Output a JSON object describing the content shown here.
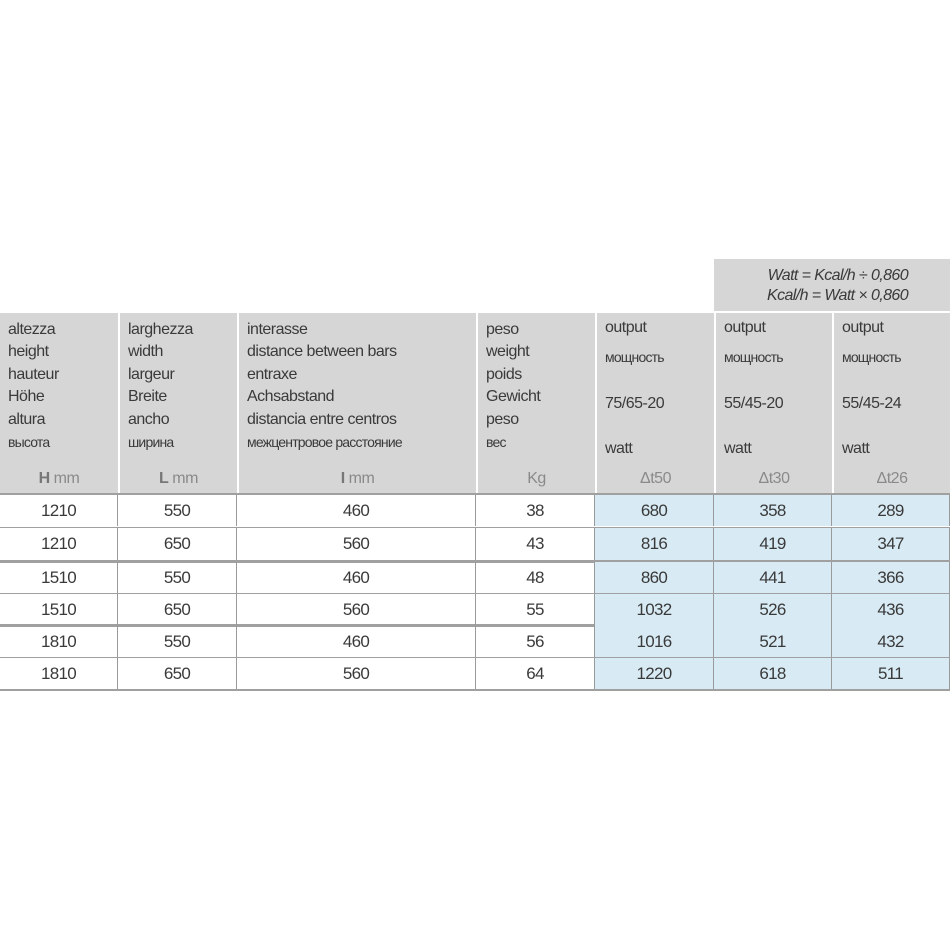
{
  "formula": {
    "line1": "Watt = Kcal/h ÷ 0,860",
    "line2": "Kcal/h = Watt × 0,860"
  },
  "headers": [
    {
      "lines": [
        "altezza",
        "height",
        "hauteur",
        "Höhe",
        "altura"
      ],
      "ru": "высота",
      "unit_letter": "H",
      "unit": "mm"
    },
    {
      "lines": [
        "larghezza",
        "width",
        "largeur",
        "Breite",
        "ancho"
      ],
      "ru": "ширина",
      "unit_letter": "L",
      "unit": "mm"
    },
    {
      "lines": [
        "interasse",
        "distance between bars",
        "entraxe",
        "Achsabstand",
        "distancia entre centros"
      ],
      "ru": "межцентровое расстояние",
      "unit_letter": "I",
      "unit": "mm"
    },
    {
      "lines": [
        "peso",
        "weight",
        "poids",
        "Gewicht",
        "peso"
      ],
      "ru": "вес",
      "unit_letter": "",
      "unit": "Kg"
    }
  ],
  "output_headers": [
    {
      "label": "output",
      "ru": "мощность",
      "temps": "75/65-20",
      "unit": "watt",
      "delta": "Δt50"
    },
    {
      "label": "output",
      "ru": "мощность",
      "temps": "55/45-20",
      "unit": "watt",
      "delta": "Δt30"
    },
    {
      "label": "output",
      "ru": "мощность",
      "temps": "55/45-24",
      "unit": "watt",
      "delta": "Δt26"
    }
  ],
  "rows": [
    [
      "1210",
      "550",
      "460",
      "38",
      "680",
      "358",
      "289"
    ],
    [
      "1210",
      "650",
      "560",
      "43",
      "816",
      "419",
      "347"
    ],
    [
      "1510",
      "550",
      "460",
      "48",
      "860",
      "441",
      "366"
    ],
    [
      "1510",
      "650",
      "560",
      "55",
      "1032",
      "526",
      "436"
    ],
    [
      "1810",
      "550",
      "460",
      "56",
      "1016",
      "521",
      "432"
    ],
    [
      "1810",
      "650",
      "560",
      "64",
      "1220",
      "618",
      "511"
    ]
  ],
  "colors": {
    "header_bg": "#d6d6d6",
    "output_bg": "#d8ebf5"
  }
}
